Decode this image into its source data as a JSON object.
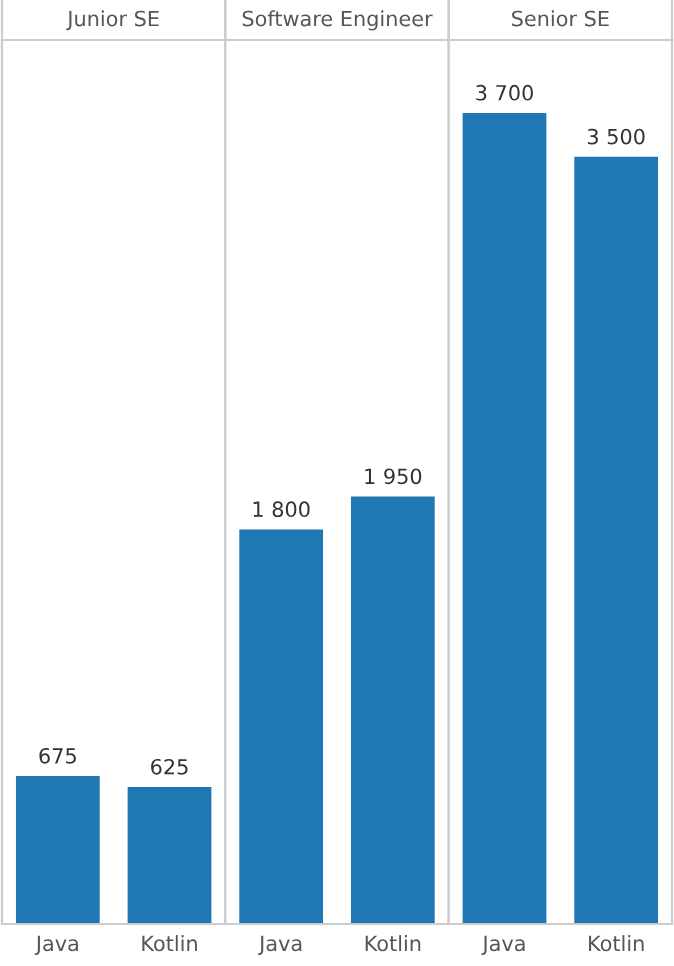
{
  "chart_data": [
    {
      "type": "bar",
      "title": "Junior SE",
      "categories": [
        "Java",
        "Kotlin"
      ],
      "values": [
        675,
        625
      ],
      "color": "#1f77b4",
      "data_labels": true,
      "value_labels": [
        "675",
        "625"
      ]
    },
    {
      "type": "bar",
      "title": "Software Engineer",
      "categories": [
        "Java",
        "Kotlin"
      ],
      "values": [
        1800,
        1950
      ],
      "color": "#1f77b4",
      "data_labels": true,
      "value_labels": [
        "1 800",
        "1 950"
      ]
    },
    {
      "type": "bar",
      "title": "Senior SE",
      "categories": [
        "Java",
        "Kotlin"
      ],
      "values": [
        3700,
        3500
      ],
      "color": "#1f77b4",
      "data_labels": true,
      "value_labels": [
        "3 700",
        "3 500"
      ]
    }
  ]
}
